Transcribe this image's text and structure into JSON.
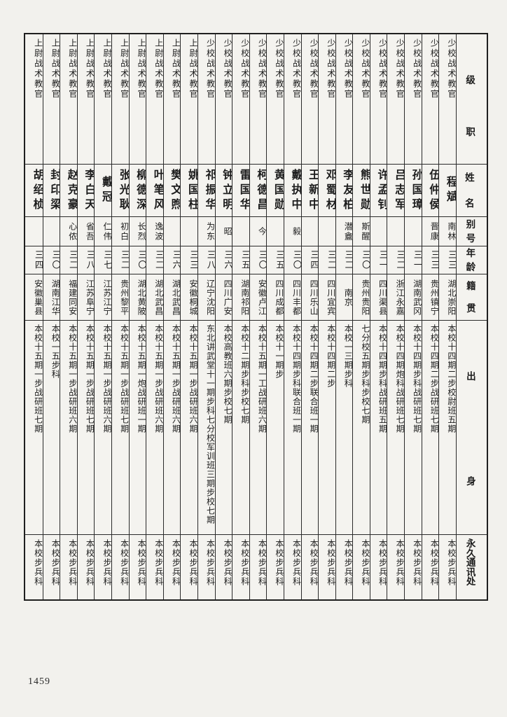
{
  "page": {
    "number": "1459"
  },
  "table": {
    "headers": {
      "rank": "级职",
      "name": "姓名",
      "alias": "别号",
      "age": "年龄",
      "native_place": "籍贯",
      "background": "出身",
      "contact": "永久通讯处"
    },
    "persons": [
      {
        "rank": "少校战术教官",
        "name": "程斌",
        "alias": "南林",
        "age": "三三",
        "native_place": "湖北崇阳",
        "background": "本校十四期二步校尉班五期",
        "contact": "本校步兵科"
      },
      {
        "rank": "少校战术教官",
        "name": "伍仲侯",
        "alias": "晋康",
        "age": "三三",
        "native_place": "贵州镇宁",
        "background": "本校十四期二步战研班七期",
        "contact": "本校步兵科"
      },
      {
        "rank": "少校战术教官",
        "name": "孙国璋",
        "alias": "",
        "age": "三一",
        "native_place": "湖南武冈",
        "background": "本校十四期步科战研班七期",
        "contact": "本校步兵科"
      },
      {
        "rank": "少校战术教官",
        "name": "吕志军",
        "alias": "",
        "age": "三二",
        "native_place": "浙江永嘉",
        "background": "本校十四期炮科战研班七期",
        "contact": "本校步兵科"
      },
      {
        "rank": "少校战术教官",
        "name": "许孟钊",
        "alias": "",
        "age": "三一",
        "native_place": "四川渠县",
        "background": "本校十四期步科战研班五期",
        "contact": "本校步兵科"
      },
      {
        "rank": "少校战术教官",
        "name": "熊世勋",
        "alias": "斯醒",
        "age": "三〇",
        "native_place": "贵州贵阳",
        "background": "七分校五期步科步校七期",
        "contact": "本校步兵科"
      },
      {
        "rank": "少校战术教官",
        "name": "李友柏",
        "alias": "潜盦",
        "age": "三二",
        "native_place": "南京",
        "background": "本校一三期步科",
        "contact": "本校步兵科"
      },
      {
        "rank": "少校战术教官",
        "name": "邓蜀材",
        "alias": "",
        "age": "三二",
        "native_place": "四川宜宾",
        "background": "本校十四期二步",
        "contact": "本校步兵科"
      },
      {
        "rank": "少校战术教官",
        "name": "王新中",
        "alias": "",
        "age": "三四",
        "native_place": "四川乐山",
        "background": "本校十四期二步联合班一期",
        "contact": "本校步兵科"
      },
      {
        "rank": "少校战术教官",
        "name": "戴执中",
        "alias": "毅",
        "age": "三〇",
        "native_place": "四川丰都",
        "background": "本校十四期步科联合班一期",
        "contact": "本校步兵科"
      },
      {
        "rank": "少校战术教官",
        "name": "黄国勋",
        "alias": "",
        "age": "三五",
        "native_place": "四川成都",
        "background": "本校十一期步",
        "contact": "本校步兵科"
      },
      {
        "rank": "少校战术教官",
        "name": "柯德昌",
        "alias": "今",
        "age": "三〇",
        "native_place": "安徽卢江",
        "background": "本校十五期一工战研班六期",
        "contact": "本校步兵科"
      },
      {
        "rank": "少校战术教官",
        "name": "雷国华",
        "alias": "",
        "age": "三五",
        "native_place": "湖南祁阳",
        "background": "本校十二期步科步校七期",
        "contact": "本校步兵科"
      },
      {
        "rank": "少校战术教官",
        "name": "钟立明",
        "alias": "昭",
        "age": "三六",
        "native_place": "四川广安",
        "background": "本校高教班六期步校七期",
        "contact": "本校步兵科"
      },
      {
        "rank": "少校战术教官",
        "name": "祁振华",
        "alias": "为东",
        "age": "三八",
        "native_place": "辽宁沈阳",
        "background": "东北讲武堂十一期步科七分校军训班三期步校七期",
        "contact": "本校步兵科"
      },
      {
        "rank": "上尉战术教官",
        "name": "姚国柱",
        "alias": "",
        "age": "三三",
        "native_place": "安徽桐城",
        "background": "本校十五期一步战研班六期",
        "contact": "本校步兵科"
      },
      {
        "rank": "上尉战术教官",
        "name": "樊文煦",
        "alias": "",
        "age": "三六",
        "native_place": "湖北武昌",
        "background": "本校十五期一步战研班六期",
        "contact": "本校步兵科"
      },
      {
        "rank": "上尉战术教官",
        "name": "叶笔风",
        "alias": "逸波",
        "age": "三二",
        "native_place": "湖北武昌",
        "background": "本校十五期一步战研班六期",
        "contact": "本校步兵科"
      },
      {
        "rank": "上尉战术教官",
        "name": "柳德深",
        "alias": "长烈",
        "age": "三〇",
        "native_place": "湖北黄陂",
        "background": "本校十五期一炮战研班一期",
        "contact": "本校步兵科"
      },
      {
        "rank": "上尉战术教官",
        "name": "张光耿",
        "alias": "初白",
        "age": "三二",
        "native_place": "贵州黎平",
        "background": "本校十五期一步战研班七期",
        "contact": "本校步兵科"
      },
      {
        "rank": "上尉战术教官",
        "name": "戴冠",
        "alias": "仁伟",
        "age": "三七",
        "native_place": "江苏江宁",
        "background": "本校十五期一步战研班六期",
        "contact": "本校步兵科"
      },
      {
        "rank": "上尉战术教官",
        "name": "李白天",
        "alias": "省吾",
        "age": "三八",
        "native_place": "江苏阜宁",
        "background": "本校十五期一步战研班七期",
        "contact": "本校步兵科"
      },
      {
        "rank": "上尉战术教官",
        "name": "赵克豪",
        "alias": "心侬",
        "age": "三二",
        "native_place": "福建同安",
        "background": "本校十五期一步战研班六期",
        "contact": "本校步兵科"
      },
      {
        "rank": "上尉战术教官",
        "name": "封印梁",
        "alias": "",
        "age": "三〇",
        "native_place": "湖南江华",
        "background": "本校一五步科",
        "contact": "本校步兵科"
      },
      {
        "rank": "上尉战术教官",
        "name": "胡绍桢",
        "alias": "",
        "age": "三四",
        "native_place": "安徽巢县",
        "background": "本校十五期一步战研班七期",
        "contact": "本校步兵科"
      }
    ]
  }
}
